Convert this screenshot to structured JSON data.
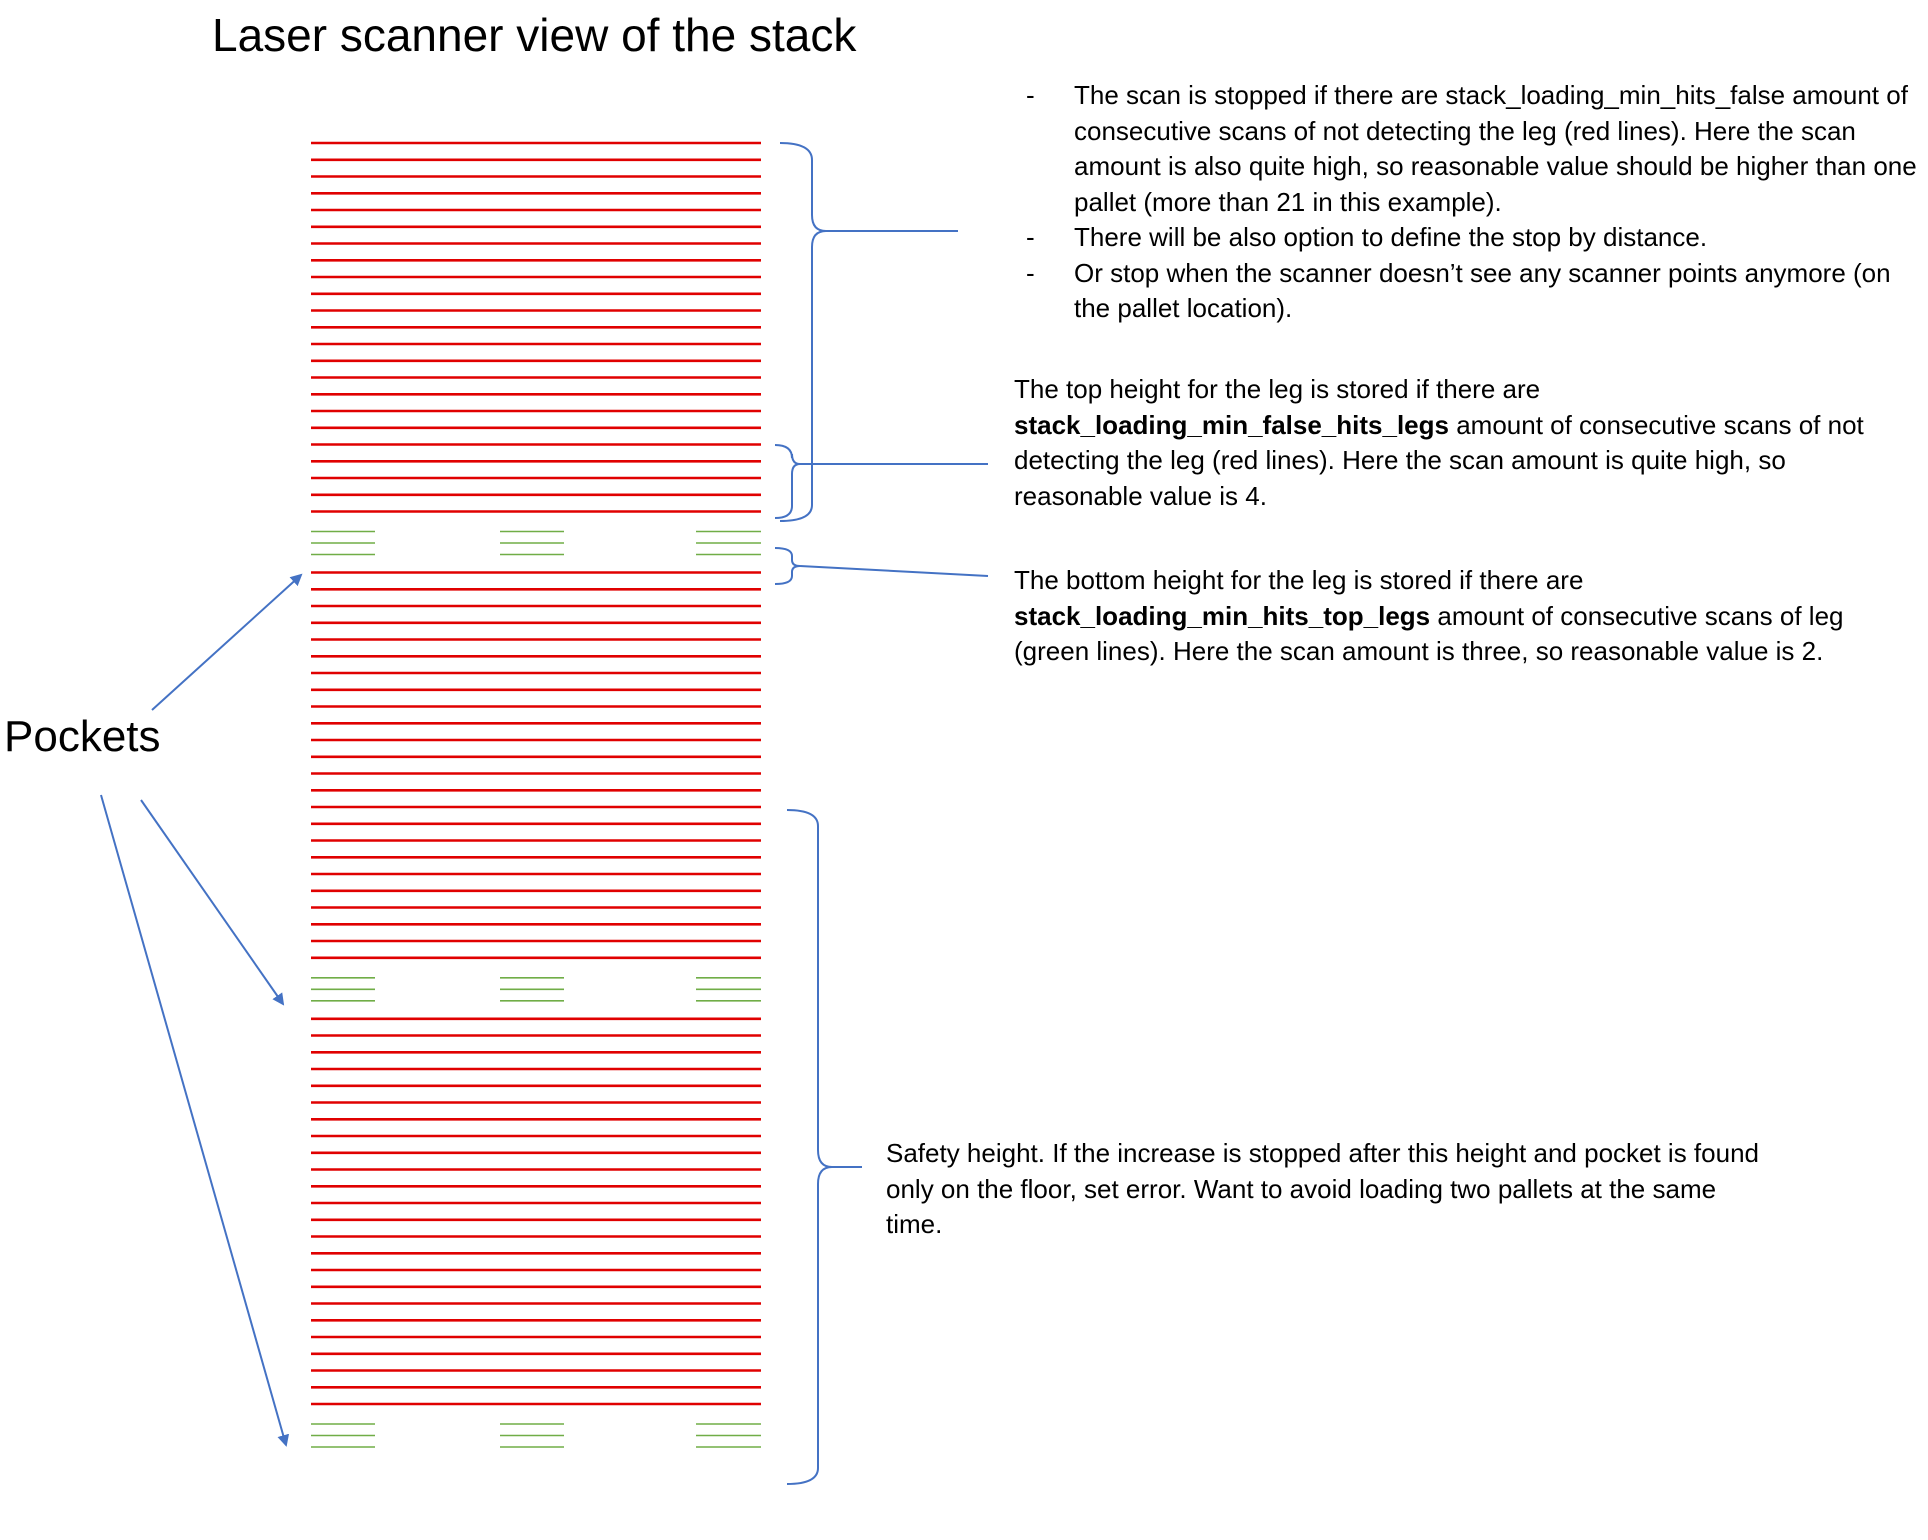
{
  "title": "Laser scanner view of the stack",
  "pockets_label": "Pockets",
  "notes": {
    "stop_bullets": [
      "The scan is stopped if there are stack_loading_min_hits_false amount of consecutive scans of not detecting the leg (red lines). Here the scan amount is also quite high, so reasonable value should be higher than one pallet (more than 21 in this example).",
      "There will be also option to define the stop by distance.",
      "Or stop when the scanner doesn’t see any scanner points anymore (on the pallet location)."
    ],
    "bullet_marker": "-",
    "top_height": {
      "pre": "The top height for the leg is stored if there are",
      "param": "stack_loading_min_false_hits_legs",
      "post": "amount of consecutive scans of not detecting the leg (red lines). Here the scan amount is quite high, so reasonable value is 4."
    },
    "bottom_height": {
      "pre": "The bottom height for the leg is stored if there are",
      "param": "stack_loading_min_hits_top_legs",
      "post": "amount of consecutive scans of leg (green lines). Here the scan amount is three, so reasonable value is 2."
    },
    "safety_height": "Safety height. If the increase is stopped after this height and pocket is found only on the floor, set error. Want to avoid loading two pallets at the same time."
  },
  "colors": {
    "red_scan": "#e00000",
    "green_scan": "#70ad47",
    "annotation_blue": "#4472c4"
  },
  "scan_blocks": [
    {
      "kind": "red",
      "lines": 23
    },
    {
      "kind": "green",
      "lines": 3
    },
    {
      "kind": "red",
      "lines": 24
    },
    {
      "kind": "green",
      "lines": 3
    },
    {
      "kind": "red",
      "lines": 24
    },
    {
      "kind": "green",
      "lines": 3
    }
  ]
}
